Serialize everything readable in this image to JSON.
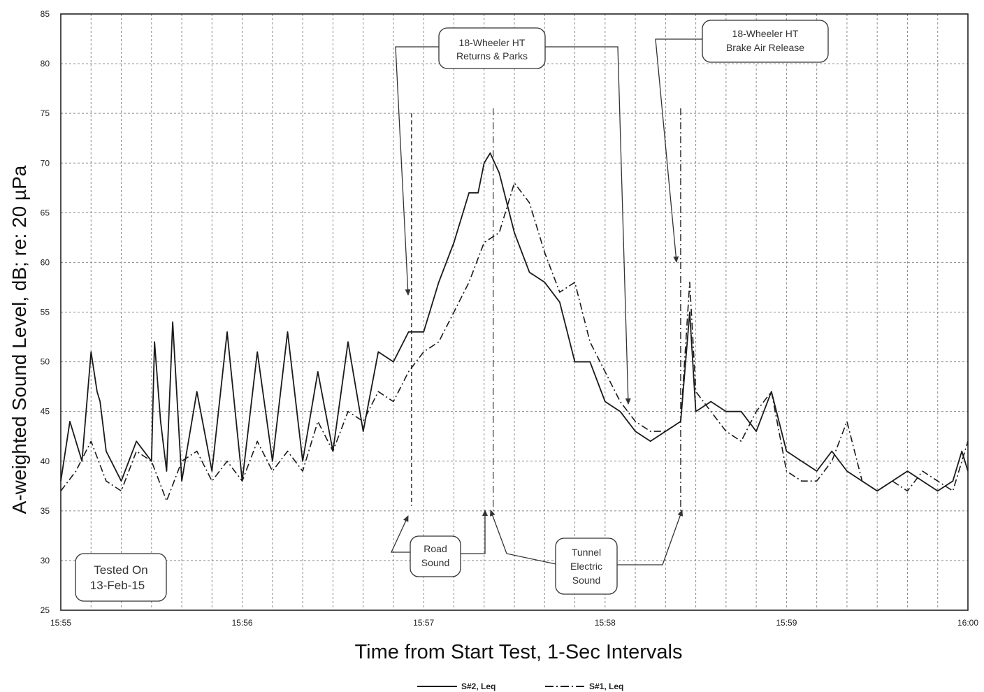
{
  "chart_data": {
    "type": "line",
    "title": "",
    "xlabel": "Time from Start Test, 1-Sec Intervals",
    "ylabel": "A-weighted Sound Level, dB; re: 20 µPa",
    "xlim": [
      "15:55:00",
      "16:00:00"
    ],
    "ylim": [
      25,
      85
    ],
    "grid": true,
    "legend_position": "bottom-center",
    "x_ticks": [
      "15:55",
      "15:56",
      "15:57",
      "15:58",
      "15:59",
      "16:00"
    ],
    "y_ticks": [
      25,
      30,
      35,
      40,
      45,
      50,
      55,
      60,
      65,
      70,
      75,
      80,
      85
    ],
    "series": [
      {
        "name": "S#2, Leq",
        "style": "solid",
        "color": "#1a1a1a",
        "x": [
          "15:55:00",
          "15:55:03",
          "15:55:07",
          "15:55:10",
          "15:55:12",
          "15:55:13",
          "15:55:15",
          "15:55:20",
          "15:55:25",
          "15:55:30",
          "15:55:31",
          "15:55:33",
          "15:55:35",
          "15:55:37",
          "15:55:40",
          "15:55:45",
          "15:55:50",
          "15:55:55",
          "15:56:00",
          "15:56:05",
          "15:56:10",
          "15:56:15",
          "15:56:20",
          "15:56:25",
          "15:56:30",
          "15:56:35",
          "15:56:40",
          "15:56:45",
          "15:56:50",
          "15:56:55",
          "15:57:00",
          "15:57:05",
          "15:57:10",
          "15:57:15",
          "15:57:18",
          "15:57:20",
          "15:57:22",
          "15:57:25",
          "15:57:30",
          "15:57:35",
          "15:57:40",
          "15:57:45",
          "15:57:50",
          "15:57:55",
          "15:58:00",
          "15:58:05",
          "15:58:10",
          "15:58:15",
          "15:58:20",
          "15:58:25",
          "15:58:28",
          "15:58:30",
          "15:58:35",
          "15:58:40",
          "15:58:45",
          "15:58:50",
          "15:58:55",
          "15:59:00",
          "15:59:05",
          "15:59:10",
          "15:59:15",
          "15:59:20",
          "15:59:25",
          "15:59:30",
          "15:59:35",
          "15:59:40",
          "15:59:45",
          "15:59:50",
          "15:59:55",
          "15:59:58",
          "16:00:00"
        ],
        "y": [
          38,
          44,
          40,
          51,
          47,
          46,
          41,
          38,
          42,
          40,
          52,
          44,
          39,
          54,
          38,
          47,
          39,
          53,
          38,
          51,
          40,
          53,
          40,
          49,
          41,
          52,
          43,
          51,
          50,
          53,
          53,
          58,
          62,
          67,
          67,
          70,
          71,
          69,
          63,
          59,
          58,
          56,
          50,
          50,
          46,
          45,
          43,
          42,
          43,
          44,
          55,
          45,
          46,
          45,
          45,
          43,
          47,
          41,
          40,
          39,
          41,
          39,
          38,
          37,
          38,
          39,
          38,
          37,
          38,
          41,
          39
        ]
      },
      {
        "name": "S#1, Leq",
        "style": "dash-dot",
        "color": "#1a1a1a",
        "x": [
          "15:55:00",
          "15:55:05",
          "15:55:10",
          "15:55:15",
          "15:55:20",
          "15:55:25",
          "15:55:30",
          "15:55:35",
          "15:55:40",
          "15:55:45",
          "15:55:50",
          "15:55:55",
          "15:56:00",
          "15:56:05",
          "15:56:10",
          "15:56:15",
          "15:56:20",
          "15:56:25",
          "15:56:30",
          "15:56:35",
          "15:56:40",
          "15:56:45",
          "15:56:50",
          "15:56:55",
          "15:57:00",
          "15:57:05",
          "15:57:10",
          "15:57:15",
          "15:57:20",
          "15:57:25",
          "15:57:30",
          "15:57:35",
          "15:57:40",
          "15:57:45",
          "15:57:50",
          "15:57:55",
          "15:58:00",
          "15:58:05",
          "15:58:10",
          "15:58:15",
          "15:58:20",
          "15:58:25",
          "15:58:28",
          "15:58:30",
          "15:58:35",
          "15:58:40",
          "15:58:45",
          "15:58:50",
          "15:58:55",
          "15:59:00",
          "15:59:05",
          "15:59:10",
          "15:59:15",
          "15:59:20",
          "15:59:25",
          "15:59:30",
          "15:59:35",
          "15:59:40",
          "15:59:45",
          "15:59:50",
          "15:59:55",
          "16:00:00"
        ],
        "y": [
          37,
          39,
          42,
          38,
          37,
          41,
          40,
          36,
          40,
          41,
          38,
          40,
          38,
          42,
          39,
          41,
          39,
          44,
          41,
          45,
          44,
          47,
          46,
          49,
          51,
          52,
          55,
          58,
          62,
          63,
          68,
          66,
          61,
          57,
          58,
          52,
          49,
          46,
          44,
          43,
          43,
          44,
          58,
          47,
          45,
          43,
          42,
          45,
          47,
          39,
          38,
          38,
          40,
          44,
          38,
          37,
          38,
          37,
          39,
          38,
          37,
          42
        ]
      }
    ],
    "annotations": [
      {
        "label": [
          "18-Wheeler HT",
          "Returns & Parks"
        ]
      },
      {
        "label": [
          "18-Wheeler HT",
          "Brake Air Release"
        ]
      },
      {
        "label": [
          "Road",
          "Sound"
        ]
      },
      {
        "label": [
          "Tunnel",
          "Electric",
          "Sound"
        ]
      },
      {
        "label": [
          "Tested On",
          "13-Feb-15"
        ]
      }
    ]
  }
}
